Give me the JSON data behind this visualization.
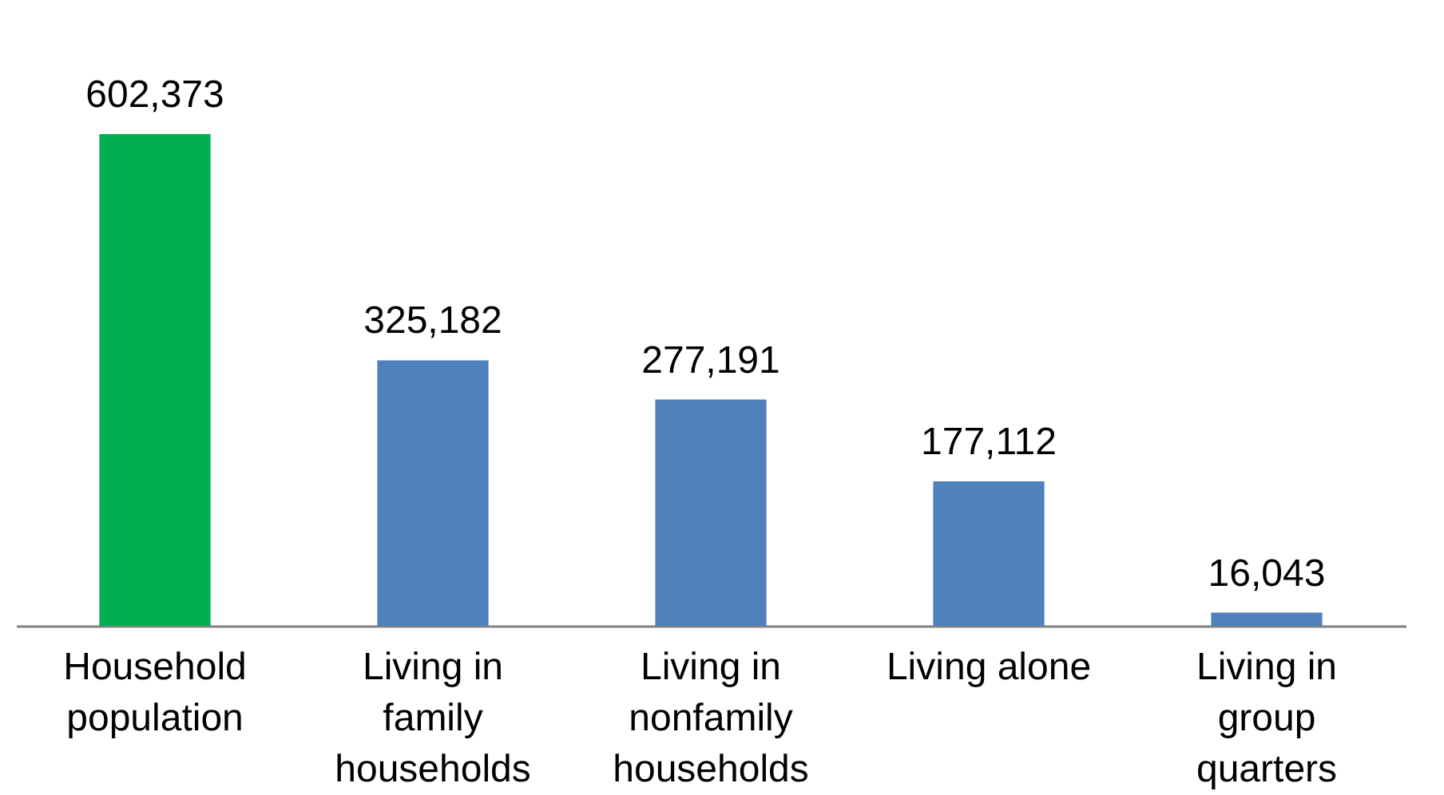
{
  "chart_data": {
    "type": "bar",
    "categories": [
      "Household population",
      "Living in family households",
      "Living in nonfamily households",
      "Living alone",
      "Living in group quarters"
    ],
    "values": [
      602373,
      325182,
      277191,
      177112,
      16043
    ],
    "value_labels": [
      "602,373",
      "325,182",
      "277,191",
      "177,112",
      "16,043"
    ],
    "colors": [
      "#00b050",
      "#4f81bd",
      "#4f81bd",
      "#4f81bd",
      "#4f81bd"
    ]
  }
}
